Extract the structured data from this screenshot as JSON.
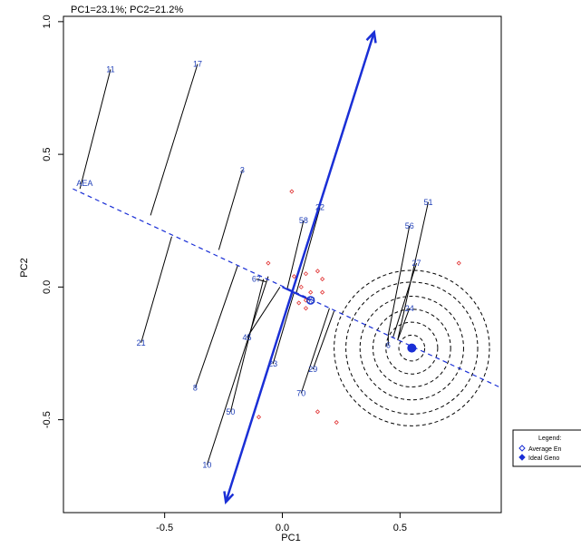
{
  "chart_data": {
    "type": "scatter",
    "title": "PC1=23.1%; PC2=21.2%",
    "xlabel": "PC1",
    "ylabel": "PC2",
    "xlim": [
      -0.93,
      0.93
    ],
    "ylim": [
      -0.85,
      1.02
    ],
    "x_ticks": [
      "-0.5",
      "0.0",
      "0.5"
    ],
    "y_ticks": [
      "-0.5",
      "0.0",
      "0.5",
      "1.0"
    ],
    "x_tick_values": [
      -0.5,
      0.0,
      0.5
    ],
    "y_tick_values": [
      -0.5,
      0.0,
      0.5,
      1.0
    ],
    "genotypes": [
      {
        "label": "11",
        "x": -0.73,
        "y": 0.82
      },
      {
        "label": "17",
        "x": -0.36,
        "y": 0.84
      },
      {
        "label": "3",
        "x": -0.17,
        "y": 0.44
      },
      {
        "label": "21",
        "x": -0.6,
        "y": -0.21
      },
      {
        "label": "8",
        "x": -0.37,
        "y": -0.38
      },
      {
        "label": "10",
        "x": -0.32,
        "y": -0.67
      },
      {
        "label": "50",
        "x": -0.22,
        "y": -0.47
      },
      {
        "label": "45",
        "x": -0.15,
        "y": -0.19
      },
      {
        "label": "67",
        "x": -0.11,
        "y": 0.03
      },
      {
        "label": "23",
        "x": -0.04,
        "y": -0.29
      },
      {
        "label": "58",
        "x": 0.09,
        "y": 0.25
      },
      {
        "label": "22",
        "x": 0.16,
        "y": 0.3
      },
      {
        "label": "63",
        "x": 0.12,
        "y": -0.05
      },
      {
        "label": "70",
        "x": 0.08,
        "y": -0.4
      },
      {
        "label": "29",
        "x": 0.13,
        "y": -0.31
      },
      {
        "label": "51",
        "x": 0.62,
        "y": 0.32
      },
      {
        "label": "56",
        "x": 0.54,
        "y": 0.23
      },
      {
        "label": "27",
        "x": 0.57,
        "y": 0.09
      },
      {
        "label": "24",
        "x": 0.54,
        "y": -0.08
      },
      {
        "label": "6",
        "x": 0.45,
        "y": -0.22
      }
    ],
    "environments": [
      {
        "x": 0.04,
        "y": 0.36
      },
      {
        "x": -0.06,
        "y": 0.09
      },
      {
        "x": 0.1,
        "y": 0.05
      },
      {
        "x": 0.15,
        "y": 0.06
      },
      {
        "x": 0.17,
        "y": 0.03
      },
      {
        "x": 0.05,
        "y": 0.04
      },
      {
        "x": 0.08,
        "y": 0.0
      },
      {
        "x": 0.12,
        "y": -0.02
      },
      {
        "x": 0.1,
        "y": -0.05
      },
      {
        "x": 0.07,
        "y": -0.06
      },
      {
        "x": 0.1,
        "y": -0.08
      },
      {
        "x": 0.75,
        "y": 0.09
      },
      {
        "x": -0.1,
        "y": -0.49
      },
      {
        "x": 0.23,
        "y": -0.51
      },
      {
        "x": 0.15,
        "y": -0.47
      },
      {
        "x": 0.17,
        "y": -0.02
      }
    ],
    "aea_label": "AEA",
    "aea_start": [
      -0.89,
      0.37
    ],
    "aea_end": [
      0.93,
      -0.38
    ],
    "ideal_point": [
      0.55,
      -0.23
    ],
    "average_env_point": [
      0.12,
      -0.05
    ],
    "ordinate_arrow": {
      "start": [
        -0.24,
        -0.81
      ],
      "end": [
        0.39,
        0.96
      ]
    },
    "circle_radii": [
      0.055,
      0.11,
      0.165,
      0.22,
      0.28,
      0.33
    ],
    "projections": [
      {
        "from": [
          -0.73,
          0.82
        ],
        "to": [
          -0.86,
          0.37
        ]
      },
      {
        "from": [
          -0.36,
          0.84
        ],
        "to": [
          -0.56,
          0.27
        ]
      },
      {
        "from": [
          -0.17,
          0.44
        ],
        "to": [
          -0.27,
          0.14
        ]
      },
      {
        "from": [
          -0.6,
          -0.21
        ],
        "to": [
          -0.47,
          0.19
        ]
      },
      {
        "from": [
          -0.37,
          -0.38
        ],
        "to": [
          -0.19,
          0.08
        ]
      },
      {
        "from": [
          -0.32,
          -0.67
        ],
        "to": [
          -0.06,
          0.04
        ]
      },
      {
        "from": [
          -0.22,
          -0.47
        ],
        "to": [
          -0.08,
          0.03
        ]
      },
      {
        "from": [
          -0.15,
          -0.19
        ],
        "to": [
          -0.01,
          0.0
        ]
      },
      {
        "from": [
          -0.11,
          0.03
        ],
        "to": [
          -0.07,
          0.02
        ]
      },
      {
        "from": [
          -0.04,
          -0.29
        ],
        "to": [
          0.05,
          -0.02
        ]
      },
      {
        "from": [
          0.09,
          0.25
        ],
        "to": [
          0.02,
          -0.01
        ]
      },
      {
        "from": [
          0.16,
          0.3
        ],
        "to": [
          0.06,
          -0.02
        ]
      },
      {
        "from": [
          0.08,
          -0.4
        ],
        "to": [
          0.2,
          -0.08
        ]
      },
      {
        "from": [
          0.13,
          -0.31
        ],
        "to": [
          0.22,
          -0.09
        ]
      },
      {
        "from": [
          0.62,
          0.32
        ],
        "to": [
          0.49,
          -0.2
        ]
      },
      {
        "from": [
          0.54,
          0.23
        ],
        "to": [
          0.45,
          -0.18
        ]
      },
      {
        "from": [
          0.57,
          0.09
        ],
        "to": [
          0.47,
          -0.19
        ]
      },
      {
        "from": [
          0.54,
          -0.08
        ],
        "to": [
          0.49,
          -0.2
        ]
      },
      {
        "from": [
          0.45,
          -0.22
        ],
        "to": [
          0.45,
          -0.18
        ]
      }
    ],
    "legend": {
      "title": "Legend:",
      "items": [
        {
          "symbol": "open-diamond",
          "label": "Average En"
        },
        {
          "symbol": "filled-diamond",
          "label": "Ideal Geno"
        }
      ],
      "placement": "bottom-right"
    },
    "colors": {
      "axis_line": "#1a2fd6",
      "projection": "#000000",
      "circle": "#000000",
      "environment": "#e03030",
      "label": "#1f3fb8"
    },
    "grid": false
  }
}
